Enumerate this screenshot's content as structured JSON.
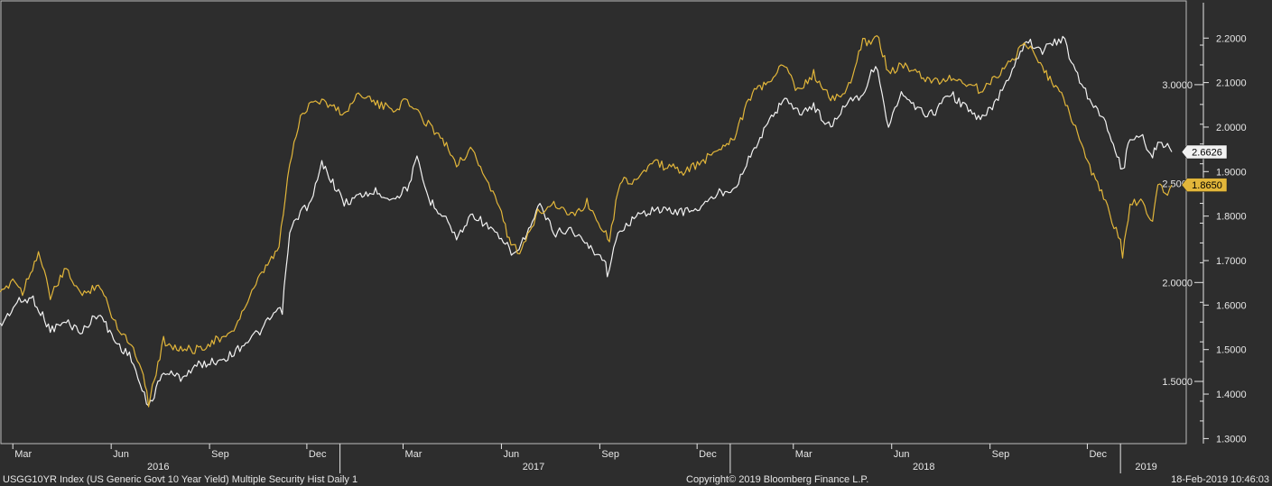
{
  "footer": {
    "left": "USGG10YR Index (US Generic Govt 10 Year Yield) Multiple Security Hist   Daily 1",
    "center": "Copyright© 2019 Bloomberg Finance L.P.",
    "right": "18-Feb-2019 10:46:03"
  },
  "chart_data": {
    "type": "line",
    "x_axis": {
      "range": [
        "2016-02-18",
        "2019-02-18"
      ],
      "month_ticks": [
        {
          "label": "Mar",
          "date": "2016-03-01"
        },
        {
          "label": "Jun",
          "date": "2016-06-01"
        },
        {
          "label": "Sep",
          "date": "2016-09-01"
        },
        {
          "label": "Dec",
          "date": "2016-12-01"
        },
        {
          "label": "Mar",
          "date": "2017-03-01"
        },
        {
          "label": "Jun",
          "date": "2017-06-01"
        },
        {
          "label": "Sep",
          "date": "2017-09-01"
        },
        {
          "label": "Dec",
          "date": "2017-12-01"
        },
        {
          "label": "Mar",
          "date": "2018-03-01"
        },
        {
          "label": "Jun",
          "date": "2018-06-01"
        },
        {
          "label": "Sep",
          "date": "2018-09-01"
        },
        {
          "label": "Dec",
          "date": "2018-12-01"
        }
      ],
      "year_labels": [
        {
          "label": "2016",
          "date": "2016-07-15"
        },
        {
          "label": "2017",
          "date": "2017-07-01"
        },
        {
          "label": "2018",
          "date": "2018-07-01"
        },
        {
          "label": "2019",
          "date": "2019-01-25"
        }
      ],
      "year_dividers": [
        "2017-01-01",
        "2018-01-01",
        "2019-01-01"
      ]
    },
    "y_axis_left": {
      "range": [
        1.3,
        3.25
      ],
      "ticks": [
        "1.5000",
        "2.0000",
        "2.5000",
        "3.0000"
      ],
      "tick_values": [
        1.5,
        2.0,
        2.5,
        3.0
      ],
      "minor_ticks": [
        1.3,
        1.4,
        1.6,
        1.7,
        1.8,
        1.9,
        2.1,
        2.2,
        2.3,
        2.4,
        2.6,
        2.7,
        2.8,
        2.9,
        3.1,
        3.2
      ]
    },
    "y_axis_right": {
      "range": [
        1.27,
        2.27
      ],
      "ticks": [
        "1.3000",
        "1.4000",
        "1.5000",
        "1.6000",
        "1.7000",
        "1.8000",
        "1.9000",
        "2.0000",
        "2.1000",
        "2.2000"
      ],
      "tick_values": [
        1.3,
        1.4,
        1.5,
        1.6,
        1.7,
        1.8,
        1.9,
        2.0,
        2.1,
        2.2
      ]
    },
    "series": [
      {
        "axis": "left",
        "color": "#f2f2f2",
        "last_value_label": "2.6626",
        "points": [
          [
            "2016-02-18",
            1.78
          ],
          [
            "2016-03-05",
            1.9
          ],
          [
            "2016-03-20",
            1.92
          ],
          [
            "2016-04-05",
            1.76
          ],
          [
            "2016-04-20",
            1.8
          ],
          [
            "2016-05-05",
            1.75
          ],
          [
            "2016-05-20",
            1.85
          ],
          [
            "2016-06-05",
            1.7
          ],
          [
            "2016-06-20",
            1.62
          ],
          [
            "2016-06-30",
            1.45
          ],
          [
            "2016-07-06",
            1.37
          ],
          [
            "2016-07-20",
            1.55
          ],
          [
            "2016-08-05",
            1.52
          ],
          [
            "2016-08-20",
            1.58
          ],
          [
            "2016-09-05",
            1.6
          ],
          [
            "2016-09-20",
            1.63
          ],
          [
            "2016-10-05",
            1.7
          ],
          [
            "2016-10-20",
            1.76
          ],
          [
            "2016-10-31",
            1.84
          ],
          [
            "2016-11-08",
            1.86
          ],
          [
            "2016-11-15",
            2.25
          ],
          [
            "2016-11-25",
            2.36
          ],
          [
            "2016-12-05",
            2.4
          ],
          [
            "2016-12-15",
            2.6
          ],
          [
            "2016-12-20",
            2.56
          ],
          [
            "2017-01-05",
            2.4
          ],
          [
            "2017-01-20",
            2.44
          ],
          [
            "2017-02-05",
            2.46
          ],
          [
            "2017-02-20",
            2.42
          ],
          [
            "2017-03-05",
            2.48
          ],
          [
            "2017-03-14",
            2.62
          ],
          [
            "2017-03-25",
            2.42
          ],
          [
            "2017-04-10",
            2.33
          ],
          [
            "2017-04-20",
            2.22
          ],
          [
            "2017-05-05",
            2.35
          ],
          [
            "2017-05-20",
            2.28
          ],
          [
            "2017-06-01",
            2.21
          ],
          [
            "2017-06-14",
            2.14
          ],
          [
            "2017-06-30",
            2.3
          ],
          [
            "2017-07-07",
            2.39
          ],
          [
            "2017-07-20",
            2.25
          ],
          [
            "2017-08-05",
            2.27
          ],
          [
            "2017-08-20",
            2.19
          ],
          [
            "2017-09-05",
            2.12
          ],
          [
            "2017-09-08",
            2.05
          ],
          [
            "2017-09-20",
            2.27
          ],
          [
            "2017-10-05",
            2.33
          ],
          [
            "2017-10-20",
            2.37
          ],
          [
            "2017-11-05",
            2.36
          ],
          [
            "2017-11-20",
            2.36
          ],
          [
            "2017-12-05",
            2.38
          ],
          [
            "2017-12-20",
            2.45
          ],
          [
            "2018-01-05",
            2.48
          ],
          [
            "2018-01-20",
            2.64
          ],
          [
            "2018-02-05",
            2.8
          ],
          [
            "2018-02-21",
            2.94
          ],
          [
            "2018-03-05",
            2.86
          ],
          [
            "2018-03-20",
            2.89
          ],
          [
            "2018-04-05",
            2.78
          ],
          [
            "2018-04-20",
            2.92
          ],
          [
            "2018-05-05",
            2.95
          ],
          [
            "2018-05-17",
            3.11
          ],
          [
            "2018-05-29",
            2.79
          ],
          [
            "2018-06-10",
            2.95
          ],
          [
            "2018-06-25",
            2.87
          ],
          [
            "2018-07-10",
            2.85
          ],
          [
            "2018-07-25",
            2.96
          ],
          [
            "2018-08-10",
            2.88
          ],
          [
            "2018-08-23",
            2.82
          ],
          [
            "2018-09-05",
            2.9
          ],
          [
            "2018-09-20",
            3.06
          ],
          [
            "2018-10-05",
            3.23
          ],
          [
            "2018-10-20",
            3.17
          ],
          [
            "2018-11-08",
            3.24
          ],
          [
            "2018-11-20",
            3.06
          ],
          [
            "2018-12-05",
            2.91
          ],
          [
            "2018-12-20",
            2.79
          ],
          [
            "2019-01-03",
            2.56
          ],
          [
            "2019-01-10",
            2.73
          ],
          [
            "2019-01-20",
            2.75
          ],
          [
            "2019-01-31",
            2.63
          ],
          [
            "2019-02-05",
            2.72
          ],
          [
            "2019-02-12",
            2.7
          ],
          [
            "2019-02-18",
            2.66
          ]
        ]
      },
      {
        "axis": "right",
        "color": "#e2b63a",
        "last_value_label": "1.8650",
        "points": [
          [
            "2016-02-18",
            1.62
          ],
          [
            "2016-03-01",
            1.66
          ],
          [
            "2016-03-10",
            1.63
          ],
          [
            "2016-03-25",
            1.72
          ],
          [
            "2016-04-05",
            1.62
          ],
          [
            "2016-04-20",
            1.68
          ],
          [
            "2016-05-05",
            1.62
          ],
          [
            "2016-05-20",
            1.65
          ],
          [
            "2016-06-05",
            1.56
          ],
          [
            "2016-06-20",
            1.51
          ],
          [
            "2016-07-01",
            1.45
          ],
          [
            "2016-07-06",
            1.38
          ],
          [
            "2016-07-20",
            1.52
          ],
          [
            "2016-08-05",
            1.5
          ],
          [
            "2016-08-20",
            1.5
          ],
          [
            "2016-09-05",
            1.52
          ],
          [
            "2016-09-20",
            1.53
          ],
          [
            "2016-10-05",
            1.6
          ],
          [
            "2016-10-20",
            1.67
          ],
          [
            "2016-11-05",
            1.73
          ],
          [
            "2016-11-15",
            1.92
          ],
          [
            "2016-11-25",
            2.02
          ],
          [
            "2016-12-05",
            2.06
          ],
          [
            "2016-12-15",
            2.06
          ],
          [
            "2017-01-05",
            2.03
          ],
          [
            "2017-01-20",
            2.08
          ],
          [
            "2017-02-05",
            2.05
          ],
          [
            "2017-02-20",
            2.04
          ],
          [
            "2017-03-05",
            2.06
          ],
          [
            "2017-03-15",
            2.03
          ],
          [
            "2017-04-05",
            1.98
          ],
          [
            "2017-04-20",
            1.92
          ],
          [
            "2017-05-05",
            1.95
          ],
          [
            "2017-05-20",
            1.87
          ],
          [
            "2017-06-01",
            1.81
          ],
          [
            "2017-06-10",
            1.73
          ],
          [
            "2017-06-20",
            1.72
          ],
          [
            "2017-07-05",
            1.81
          ],
          [
            "2017-07-20",
            1.83
          ],
          [
            "2017-08-05",
            1.8
          ],
          [
            "2017-08-20",
            1.83
          ],
          [
            "2017-09-05",
            1.77
          ],
          [
            "2017-09-10",
            1.75
          ],
          [
            "2017-09-20",
            1.88
          ],
          [
            "2017-10-05",
            1.88
          ],
          [
            "2017-10-20",
            1.92
          ],
          [
            "2017-11-05",
            1.91
          ],
          [
            "2017-11-20",
            1.9
          ],
          [
            "2017-12-05",
            1.92
          ],
          [
            "2017-12-20",
            1.95
          ],
          [
            "2018-01-05",
            1.98
          ],
          [
            "2018-01-20",
            2.07
          ],
          [
            "2018-02-05",
            2.1
          ],
          [
            "2018-02-21",
            2.14
          ],
          [
            "2018-03-05",
            2.08
          ],
          [
            "2018-03-20",
            2.12
          ],
          [
            "2018-04-05",
            2.06
          ],
          [
            "2018-04-20",
            2.08
          ],
          [
            "2018-05-05",
            2.19
          ],
          [
            "2018-05-20",
            2.2
          ],
          [
            "2018-05-29",
            2.12
          ],
          [
            "2018-06-10",
            2.14
          ],
          [
            "2018-06-25",
            2.12
          ],
          [
            "2018-07-10",
            2.1
          ],
          [
            "2018-07-25",
            2.11
          ],
          [
            "2018-08-10",
            2.1
          ],
          [
            "2018-08-25",
            2.08
          ],
          [
            "2018-09-05",
            2.11
          ],
          [
            "2018-09-20",
            2.15
          ],
          [
            "2018-10-05",
            2.19
          ],
          [
            "2018-10-20",
            2.13
          ],
          [
            "2018-11-05",
            2.08
          ],
          [
            "2018-11-20",
            2.0
          ],
          [
            "2018-12-05",
            1.9
          ],
          [
            "2018-12-20",
            1.82
          ],
          [
            "2019-01-01",
            1.74
          ],
          [
            "2019-01-03",
            1.71
          ],
          [
            "2019-01-10",
            1.82
          ],
          [
            "2019-01-20",
            1.84
          ],
          [
            "2019-01-31",
            1.78
          ],
          [
            "2019-02-05",
            1.88
          ],
          [
            "2019-02-12",
            1.85
          ],
          [
            "2019-02-18",
            1.87
          ]
        ]
      }
    ]
  }
}
